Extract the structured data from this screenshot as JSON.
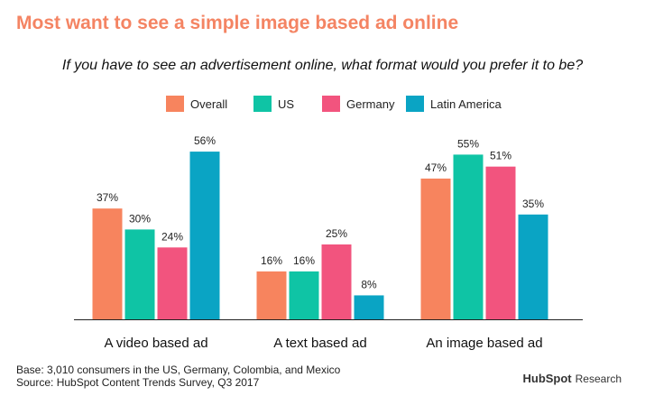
{
  "headline": "Most want to see a simple image based ad online",
  "brand": {
    "name": "HubSpot",
    "sub": "Research"
  },
  "footer": {
    "base": "Base: 3,010 consumers in the US, Germany, Colombia, and Mexico",
    "source": "Source: HubSpot Content Trends Survey, Q3 2017"
  },
  "chart_data": {
    "type": "bar",
    "title": "If you have to see an advertisement online, what format would you prefer it to be?",
    "xlabel": "",
    "ylabel": "",
    "ylim": [
      0,
      60
    ],
    "grid": false,
    "legend_placement": "top-center",
    "value_suffix": "%",
    "categories": [
      "A video based ad",
      "A text based ad",
      "An image based ad"
    ],
    "series": [
      {
        "name": "Overall",
        "color": "#f7845e",
        "values": [
          37,
          16,
          47
        ]
      },
      {
        "name": "US",
        "color": "#0fc4a5",
        "values": [
          30,
          16,
          55
        ]
      },
      {
        "name": "Germany",
        "color": "#f2547e",
        "values": [
          24,
          25,
          51
        ]
      },
      {
        "name": "Latin America",
        "color": "#0aa4c4",
        "values": [
          56,
          8,
          35
        ]
      }
    ]
  }
}
